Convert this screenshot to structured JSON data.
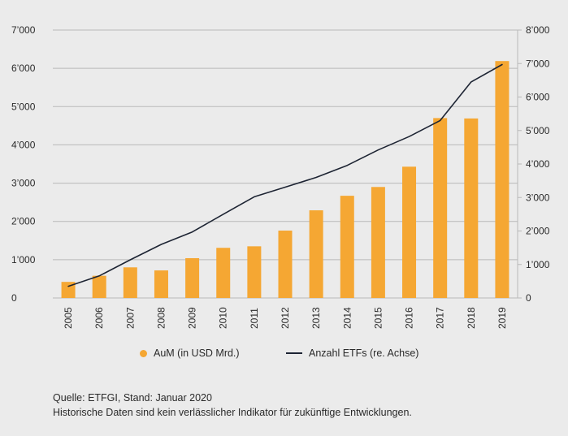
{
  "chart_data": {
    "type": "bar",
    "categories": [
      "2005",
      "2006",
      "2007",
      "2008",
      "2009",
      "2010",
      "2011",
      "2012",
      "2013",
      "2014",
      "2015",
      "2016",
      "2017",
      "2018",
      "2019"
    ],
    "series": [
      {
        "name": "AuM (in USD Mrd.)",
        "type": "bar",
        "axis": "left",
        "color": "#f5a733",
        "values": [
          420,
          580,
          800,
          720,
          1040,
          1310,
          1350,
          1760,
          2290,
          2670,
          2900,
          3430,
          4700,
          4690,
          6190
        ]
      },
      {
        "name": "Anzahl ETFs (re. Achse)",
        "type": "line",
        "axis": "right",
        "color": "#1d2433",
        "values": [
          350,
          660,
          1140,
          1600,
          1970,
          2500,
          3020,
          3310,
          3600,
          3960,
          4420,
          4820,
          5300,
          6450,
          6970
        ]
      }
    ],
    "y_left": {
      "ylim": [
        0,
        7000
      ],
      "ticks": [
        0,
        1000,
        2000,
        3000,
        4000,
        5000,
        6000,
        7000
      ],
      "tick_labels": [
        "0",
        "1’000",
        "2’000",
        "3’000",
        "4’000",
        "5’000",
        "6’000",
        "7’000"
      ]
    },
    "y_right": {
      "ylim": [
        0,
        8000
      ],
      "ticks": [
        0,
        1000,
        2000,
        3000,
        4000,
        5000,
        6000,
        7000,
        8000
      ],
      "tick_labels": [
        "0",
        "1’000",
        "2’000",
        "3’000",
        "4’000",
        "5’000",
        "6’000",
        "7’000",
        "8’000"
      ]
    },
    "grid": true,
    "legend_position": "bottom-center",
    "title": "",
    "xlabel": "",
    "ylabel": ""
  },
  "legend": {
    "bar_label": "AuM (in USD Mrd.)",
    "line_label": "Anzahl ETFs (re. Achse)"
  },
  "footer": {
    "source": "Quelle: ETFGI, Stand: Januar 2020",
    "disclaimer": "Historische Daten sind kein verlässlicher Indikator für zukünftige Entwicklungen."
  }
}
